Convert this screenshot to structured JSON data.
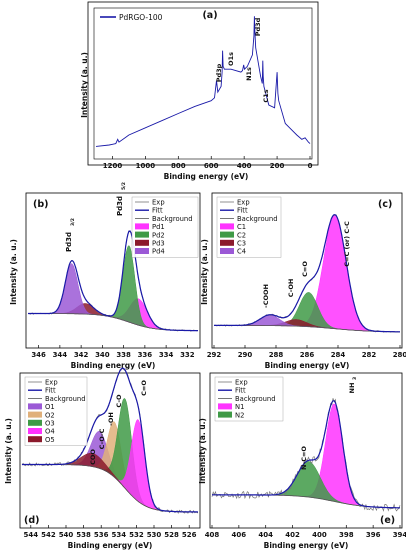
{
  "chart_data": [
    {
      "panel": "(a)",
      "type": "line",
      "xlabel": "Binding energy (eV)",
      "ylabel": "Intensity (a. u.)",
      "xlim": [
        1300,
        0
      ],
      "x_reversed": true,
      "xticks": [
        1200,
        1000,
        800,
        600,
        400,
        200,
        0
      ],
      "ylim": [
        0,
        1
      ],
      "legend": "top-left",
      "grid": false,
      "series": [
        {
          "name": "PdRGO-100",
          "color": "#1a1aa8",
          "x": [
            1300,
            1220,
            1200,
            1180,
            1168,
            1160,
            1100,
            1000,
            900,
            800,
            700,
            600,
            580,
            568,
            560,
            540,
            534,
            531,
            528,
            520,
            480,
            420,
            410,
            403,
            398,
            380,
            350,
            341,
            338,
            335,
            330,
            300,
            290,
            287,
            284,
            280,
            250,
            215,
            200,
            195,
            190,
            150,
            80,
            50,
            30,
            10,
            0
          ],
          "y": [
            0.06,
            0.07,
            0.075,
            0.08,
            0.11,
            0.09,
            0.14,
            0.19,
            0.24,
            0.29,
            0.34,
            0.38,
            0.4,
            0.52,
            0.44,
            0.48,
            0.58,
            0.73,
            0.62,
            0.6,
            0.6,
            0.58,
            0.59,
            0.63,
            0.6,
            0.62,
            0.7,
            0.83,
            0.97,
            0.86,
            0.75,
            0.55,
            0.5,
            0.66,
            0.55,
            0.48,
            0.35,
            0.33,
            0.58,
            0.43,
            0.38,
            0.22,
            0.14,
            0.11,
            0.12,
            0.09,
            0.08
          ]
        }
      ],
      "annotations": [
        "Pd3p",
        "O1s",
        "N1s",
        "Pd3d",
        "C1s"
      ]
    },
    {
      "panel": "(b)",
      "type": "area",
      "xlabel": "Binding energy (eV)",
      "ylabel": "Intensity (a. u.)",
      "xlim": [
        347,
        331
      ],
      "x_reversed": true,
      "xticks": [
        346,
        344,
        342,
        340,
        338,
        336,
        334,
        332
      ],
      "ylim": [
        0,
        1
      ],
      "legend": "top-right",
      "legend_entries": [
        "Exp",
        "Fitt",
        "Background",
        "Pd1",
        "Pd2",
        "Pd3",
        "Pd4"
      ],
      "components": [
        {
          "name": "Pd1",
          "color": "#ff33ff",
          "center": 336.6,
          "height": 0.2,
          "fwhm": 1.9
        },
        {
          "name": "Pd2",
          "color": "#3f9a46",
          "center": 337.5,
          "height": 0.58,
          "fwhm": 1.3
        },
        {
          "name": "Pd3",
          "color": "#8b1a2c",
          "center": 341.6,
          "height": 0.08,
          "fwhm": 1.9
        },
        {
          "name": "Pd4",
          "color": "#9b59d6",
          "center": 342.9,
          "height": 0.38,
          "fwhm": 1.4
        }
      ],
      "background": {
        "left": 0.14,
        "right": 0.01
      },
      "annotations": [
        "Pd3d",
        "Pd3d"
      ]
    },
    {
      "panel": "(c)",
      "type": "area",
      "xlabel": "Binding energy (eV)",
      "ylabel": "Intensity (a. u.)",
      "xlim": [
        292,
        280
      ],
      "x_reversed": true,
      "xticks": [
        292,
        290,
        288,
        286,
        284,
        282,
        280
      ],
      "ylim": [
        0,
        1
      ],
      "legend": "top-left",
      "legend_entries": [
        "Exp",
        "Fitt",
        "Background",
        "C1",
        "C2",
        "C3",
        "C4"
      ],
      "components": [
        {
          "name": "C1",
          "color": "#ff33ff",
          "center": 284.2,
          "height": 0.86,
          "fwhm": 1.7
        },
        {
          "name": "C2",
          "color": "#3f9a46",
          "center": 285.9,
          "height": 0.26,
          "fwhm": 1.4
        },
        {
          "name": "C3",
          "color": "#8b1a2c",
          "center": 286.7,
          "height": 0.05,
          "fwhm": 1.6
        },
        {
          "name": "C4",
          "color": "#9b59d6",
          "center": 288.4,
          "height": 0.08,
          "fwhm": 1.5
        }
      ],
      "background": {
        "left": 0.05,
        "right": 0.0
      },
      "annotations": [
        "-COOH",
        "C-OH",
        "C=O",
        "C=C (or) C-C"
      ]
    },
    {
      "panel": "(d)",
      "type": "area",
      "xlabel": "Binding energy (eV)",
      "ylabel": "Intensity (a. u.)",
      "xlim": [
        545,
        525
      ],
      "x_reversed": true,
      "xticks": [
        544,
        542,
        540,
        538,
        536,
        534,
        532,
        530,
        528,
        526
      ],
      "ylim": [
        0,
        1
      ],
      "legend": "top-left",
      "legend_entries": [
        "Exp",
        "Fitt",
        "Background",
        "O1",
        "O2",
        "O3",
        "O4",
        "O5"
      ],
      "components": [
        {
          "name": "O1",
          "color": "#9b59d6",
          "center": 536.2,
          "height": 0.28,
          "fwhm": 2.2
        },
        {
          "name": "O2",
          "color": "#e0b07a",
          "center": 534.5,
          "height": 0.42,
          "fwhm": 1.8
        },
        {
          "name": "O3",
          "color": "#3f9a46",
          "center": 533.3,
          "height": 0.68,
          "fwhm": 1.8
        },
        {
          "name": "O4",
          "color": "#ff33ff",
          "center": 531.8,
          "height": 0.62,
          "fwhm": 1.8
        },
        {
          "name": "O5",
          "color": "#8b1a2c",
          "center": 537.0,
          "height": 0.1,
          "fwhm": 3.0
        }
      ],
      "background": {
        "left": 0.36,
        "right": 0.0
      },
      "annotations": [
        "COO",
        "C-O-C",
        "-OH",
        "C-O",
        "C=O"
      ]
    },
    {
      "panel": "(e)",
      "type": "area",
      "xlabel": "Binding energy (eV)",
      "ylabel": "Intensity (a. u.)",
      "xlim": [
        408,
        394
      ],
      "x_reversed": true,
      "xticks": [
        408,
        406,
        404,
        402,
        400,
        398,
        396,
        394
      ],
      "ylim": [
        0,
        1
      ],
      "legend": "top-left",
      "legend_entries": [
        "Exp",
        "Fitt",
        "Background",
        "N1",
        "N2"
      ],
      "components": [
        {
          "name": "N1",
          "color": "#ff33ff",
          "center": 398.9,
          "height": 0.74,
          "fwhm": 1.5
        },
        {
          "name": "N2",
          "color": "#3f9a46",
          "center": 400.8,
          "height": 0.27,
          "fwhm": 2.0
        }
      ],
      "background": {
        "left": 0.13,
        "right": 0.03
      },
      "annotations": [
        "N-C=O",
        "NH"
      ]
    }
  ],
  "panel_a": {
    "panel_label": "(a)",
    "legend": "PdRGO-100",
    "ylabel": "Intensity (a. u.)",
    "xlabel": "Binding energy (eV)"
  },
  "panel_b": {
    "panel_label": "(b)",
    "ylabel": "Intensity (a. u.)",
    "xlabel": "Binding energy (eV)"
  },
  "panel_c": {
    "panel_label": "(c)",
    "ylabel": "Intensity (a. u.)",
    "xlabel": "Binding energy (eV)"
  },
  "panel_d": {
    "panel_label": "(d)",
    "ylabel": "Intensity (a. u.)",
    "xlabel": "Binding energy (eV)"
  },
  "panel_e": {
    "panel_label": "(e)",
    "ylabel": "Intensity (a. u.)",
    "xlabel": "Binding energy (eV)"
  },
  "colors": {
    "exp": "#777777",
    "fitt": "#1a1aa8",
    "background": "#555555"
  }
}
